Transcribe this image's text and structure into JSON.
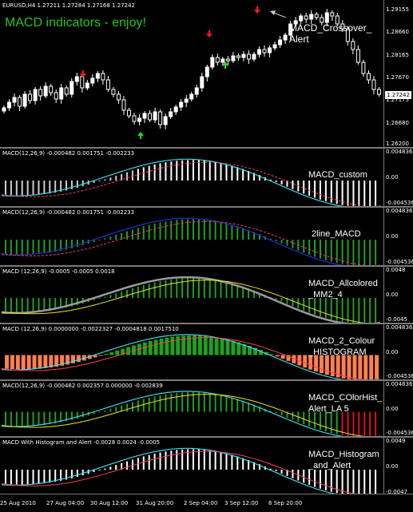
{
  "main_chart": {
    "ohlc_label": "EURUSD,H4  1.27211 1.27284 1.27168 1.27242",
    "headline": "MACD indicators - enjoy!",
    "alert_label": "MACD_Crossover_\nAlert",
    "price_ticks": [
      "1.29155",
      "1.28660",
      "1.28165",
      "1.27670",
      "1.27175",
      "1.26680",
      "1.26200"
    ],
    "current_price": "1.27242"
  },
  "panels": [
    {
      "title": "MACD(12,26,9) -0.000482 0.001751 -0.002233",
      "label": "MACD_custom",
      "ticks": [
        "0.004836",
        "0.00",
        "-0.004536"
      ]
    },
    {
      "title": "MACD(12,26,9) -0.000482 0.001751 -0.002233",
      "label": "2line_MACD",
      "ticks": [
        "0.004836",
        "0.00",
        "-0.004536"
      ]
    },
    {
      "title": "MACD (12,26,9) -0.0005 -0.0005 0.0018",
      "label": "MACD_Allcolored\n_MM2_4",
      "ticks": [
        "0.0048",
        "0.00",
        "-0.0045"
      ]
    },
    {
      "title": "MACD  (12,26,9) 0.0000000 -0.0022327 -0.0004818 0.0017510",
      "label": "MACD_2_Colour\n_HISTOGRAM",
      "ticks": [
        "0.004836",
        "0.00",
        "-0.004536"
      ]
    },
    {
      "title": "MACD(12,26,9) -0.000482 0.002357 0.000000 -0.002839",
      "label": "MACD_COlorHist_\nAlert_LA 5",
      "ticks": [
        "0.004836",
        "0.00",
        "-0.004536"
      ]
    },
    {
      "title": "MACD With Histogram and Alert -0.0028 0.0024 -0.0005",
      "label": "MACD_Histogram\n_and_Alert",
      "ticks": [
        "0.0049",
        "0.00",
        "-0.0047"
      ]
    }
  ],
  "x_axis": [
    "25 Aug 2010",
    "27 Aug 04:00",
    "30 Aug 12:00",
    "31 Aug 20:00",
    "2 Sep 04:00",
    "3 Sep 12:00",
    "6 Sep 20:00"
  ],
  "colors": {
    "background": "#000000",
    "bull_candle": "#ffffff",
    "headline": "#22c51d",
    "macd_line": "#3bd6e6",
    "signal_line": "#ff3c5a",
    "hist_green": "#1ea11e",
    "hist_salmon": "#ff7f50",
    "hist_white": "#ffffff",
    "hist_red": "#e01010",
    "yellow_line": "#f2e21b",
    "arrow_red": "#ff1a1a",
    "arrow_green": "#22dd22"
  }
}
